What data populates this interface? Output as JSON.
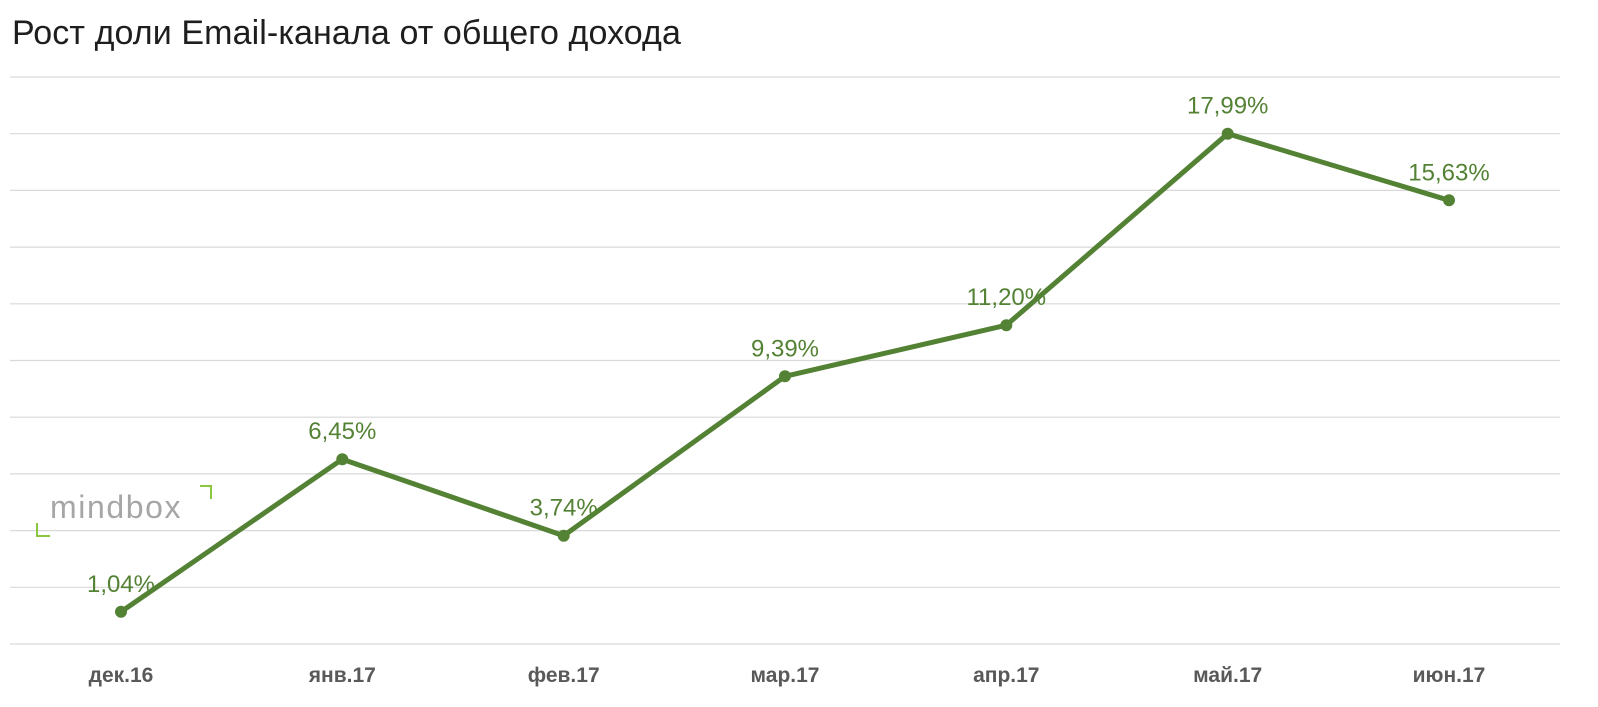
{
  "chart_data": {
    "type": "line",
    "title": "Рост доли Email-канала от общего дохода",
    "xlabel": "",
    "ylabel": "",
    "categories": [
      "дек.16",
      "янв.17",
      "фев.17",
      "мар.17",
      "апр.17",
      "май.17",
      "июн.17"
    ],
    "series": [
      {
        "values": [
          1.04,
          6.45,
          3.74,
          9.39,
          11.2,
          17.99,
          15.63
        ],
        "data_labels": [
          "1,04%",
          "6,45%",
          "3,74%",
          "9,39%",
          "11,20%",
          "17,99%",
          "15,63%"
        ]
      }
    ],
    "ylim": [
      -0.1,
      20
    ],
    "grid": true,
    "y_axis_visible": false,
    "legend": "none",
    "line_color": "#548235",
    "label_color": "#548235",
    "grid_color": "#d9d9d9",
    "tick_label_color": "#595959"
  },
  "watermark": {
    "text": "mindbox",
    "text_color": "#a6a6a6",
    "bracket_color": "#8cc63f"
  }
}
